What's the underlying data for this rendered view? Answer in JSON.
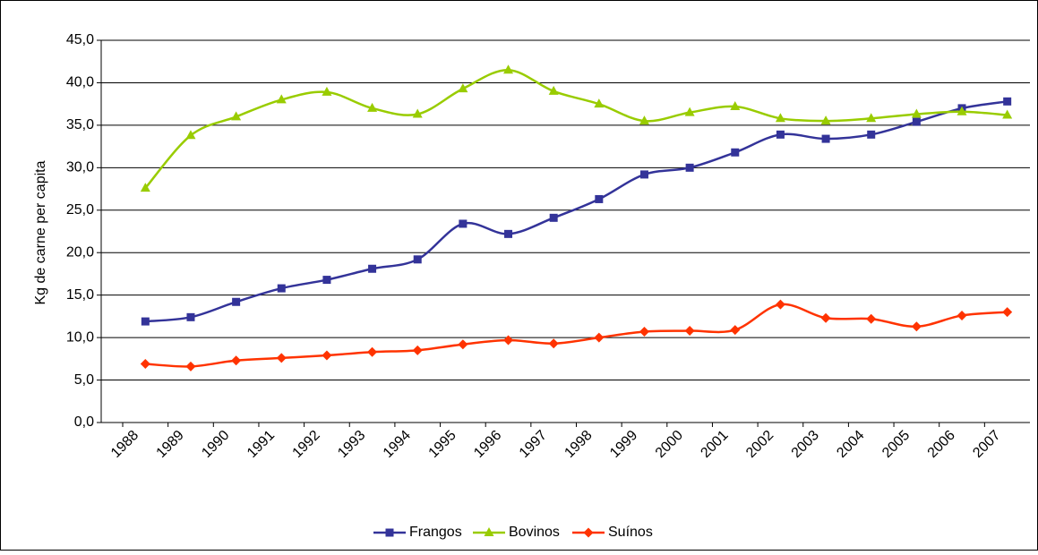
{
  "chart_data": {
    "type": "line",
    "y_label": "Kg de carne per capita",
    "categories": [
      "1988",
      "1989",
      "1990",
      "1991",
      "1992",
      "1993",
      "1994",
      "1995",
      "1996",
      "1997",
      "1998",
      "1999",
      "2000",
      "2001",
      "2002",
      "2003",
      "2004",
      "2005",
      "2006",
      "2007"
    ],
    "series": [
      {
        "name": "Frangos",
        "color": "#333399",
        "marker": "square",
        "values": [
          11.9,
          12.4,
          14.2,
          15.8,
          16.8,
          18.1,
          19.2,
          23.4,
          22.2,
          24.1,
          26.3,
          29.2,
          30.0,
          31.8,
          33.9,
          33.4,
          33.9,
          35.4,
          37.0,
          37.8
        ]
      },
      {
        "name": "Bovinos",
        "color": "#99cc00",
        "marker": "triangle",
        "values": [
          27.6,
          33.8,
          36.0,
          38.0,
          38.9,
          37.0,
          36.3,
          39.3,
          41.5,
          39.0,
          37.5,
          35.5,
          36.5,
          37.2,
          35.8,
          35.5,
          35.8,
          36.3,
          36.6,
          36.2
        ]
      },
      {
        "name": "Suínos",
        "color": "#ff3300",
        "marker": "diamond",
        "values": [
          6.9,
          6.6,
          7.3,
          7.6,
          7.9,
          8.3,
          8.5,
          9.2,
          9.7,
          9.3,
          10.0,
          10.7,
          10.8,
          10.9,
          13.9,
          12.3,
          12.2,
          11.3,
          12.6,
          13.0
        ]
      }
    ],
    "ylim": [
      0,
      45
    ],
    "yticks": [
      {
        "value": 0,
        "label": "0,0"
      },
      {
        "value": 5,
        "label": "5,0"
      },
      {
        "value": 10,
        "label": "10,0"
      },
      {
        "value": 15,
        "label": "15,0"
      },
      {
        "value": 20,
        "label": "20,0"
      },
      {
        "value": 25,
        "label": "25,0"
      },
      {
        "value": 30,
        "label": "30,0"
      },
      {
        "value": 35,
        "label": "35,0"
      },
      {
        "value": 40,
        "label": "40,0"
      },
      {
        "value": 45,
        "label": "45,0"
      }
    ],
    "grid": true,
    "smooth": true,
    "legend": "bottom"
  }
}
